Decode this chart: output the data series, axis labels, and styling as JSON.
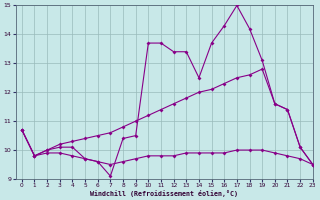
{
  "xlabel": "Windchill (Refroidissement éolien,°C)",
  "xlim": [
    -0.5,
    23
  ],
  "ylim": [
    9,
    15
  ],
  "xticks": [
    0,
    1,
    2,
    3,
    4,
    5,
    6,
    7,
    8,
    9,
    10,
    11,
    12,
    13,
    14,
    15,
    16,
    17,
    18,
    19,
    20,
    21,
    22,
    23
  ],
  "yticks": [
    9,
    10,
    11,
    12,
    13,
    14,
    15
  ],
  "bg_color": "#c8e8e8",
  "grid_color": "#99bbbb",
  "line_color": "#880088",
  "line1_y": [
    10.7,
    9.8,
    10.0,
    10.1,
    10.1,
    9.7,
    9.6,
    9.1,
    10.4,
    10.5,
    13.7,
    13.7,
    13.4,
    13.4,
    12.5,
    13.7,
    14.3,
    15.0,
    14.2,
    13.1,
    11.6,
    11.4,
    10.1,
    9.5
  ],
  "line2_y": [
    10.7,
    9.8,
    10.0,
    10.2,
    10.3,
    10.4,
    10.5,
    10.6,
    10.8,
    11.0,
    11.2,
    11.4,
    11.6,
    11.8,
    12.0,
    12.1,
    12.3,
    12.5,
    12.6,
    12.8,
    11.6,
    11.4,
    10.1,
    9.5
  ],
  "line3_y": [
    10.7,
    9.8,
    9.9,
    9.9,
    9.8,
    9.7,
    9.6,
    9.5,
    9.6,
    9.7,
    9.8,
    9.8,
    9.8,
    9.9,
    9.9,
    9.9,
    9.9,
    10.0,
    10.0,
    10.0,
    9.9,
    9.8,
    9.7,
    9.5
  ],
  "markersize": 2.0,
  "linewidth": 0.8
}
